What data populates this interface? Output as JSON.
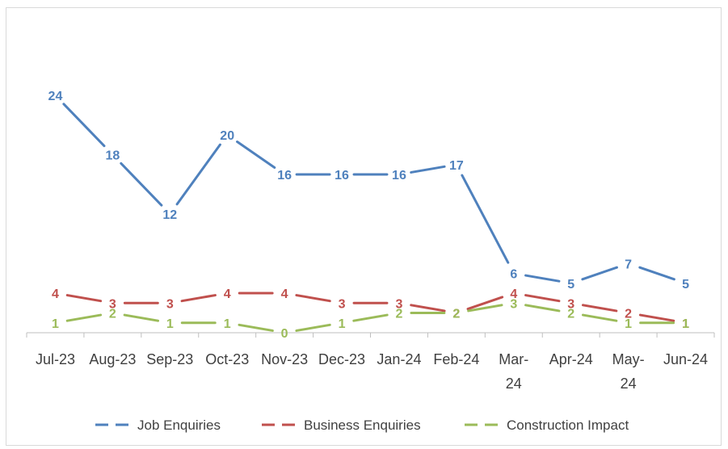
{
  "chart_data": {
    "type": "line",
    "categories": [
      "Jul-23",
      "Aug-23",
      "Sep-23",
      "Oct-23",
      "Nov-23",
      "Dec-23",
      "Jan-24",
      "Feb-24",
      "Mar-24",
      "Apr-24",
      "May-24",
      "Jun-24"
    ],
    "category_lines": [
      [
        "Jul-23"
      ],
      [
        "Aug-23"
      ],
      [
        "Sep-23"
      ],
      [
        "Oct-23"
      ],
      [
        "Nov-23"
      ],
      [
        "Dec-23"
      ],
      [
        "Jan-24"
      ],
      [
        "Feb-24"
      ],
      [
        "Mar-",
        "24"
      ],
      [
        "Apr-24"
      ],
      [
        "May-",
        "24"
      ],
      [
        "Jun-24"
      ]
    ],
    "series": [
      {
        "name": "Job Enquiries",
        "color": "#4f81bd",
        "values": [
          24,
          18,
          12,
          20,
          16,
          16,
          16,
          17,
          6,
          5,
          7,
          5
        ]
      },
      {
        "name": "Business Enquiries",
        "color": "#c0504d",
        "values": [
          4,
          3,
          3,
          4,
          4,
          3,
          3,
          2,
          4,
          3,
          2,
          1
        ]
      },
      {
        "name": "Construction Impact",
        "color": "#9bbb59",
        "values": [
          1,
          2,
          1,
          1,
          0,
          1,
          2,
          2,
          3,
          2,
          1,
          1
        ]
      }
    ],
    "ylim": [
      0,
      28
    ],
    "data_labels": true,
    "line_style": "dashed",
    "grid": false,
    "legend_position": "bottom",
    "axis_color": "#bfbfbf",
    "label_color": "#404040"
  }
}
